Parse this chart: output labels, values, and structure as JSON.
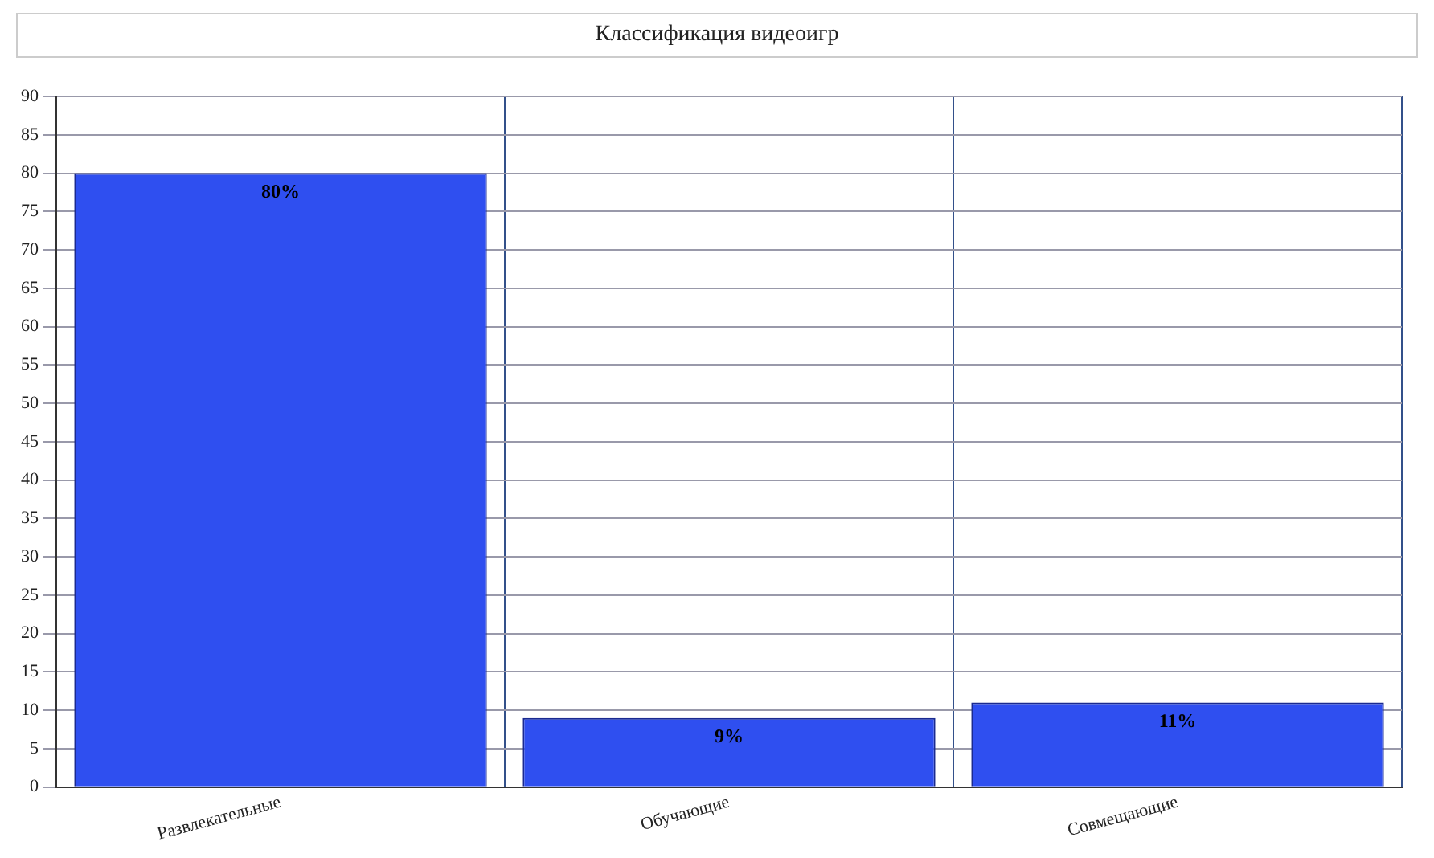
{
  "chart_data": {
    "type": "bar",
    "title": "Классификация видеоигр",
    "categories": [
      "Развлекательные",
      "Обучающие",
      "Совмещающие"
    ],
    "values": [
      80,
      9,
      11
    ],
    "value_labels": [
      "80%",
      "9%",
      "11%"
    ],
    "color": "#2f4ff0",
    "ylim": [
      0,
      90
    ],
    "yticks": [
      0,
      5,
      10,
      15,
      20,
      25,
      30,
      35,
      40,
      45,
      50,
      55,
      60,
      65,
      70,
      75,
      80,
      85,
      90
    ],
    "grid": true
  }
}
